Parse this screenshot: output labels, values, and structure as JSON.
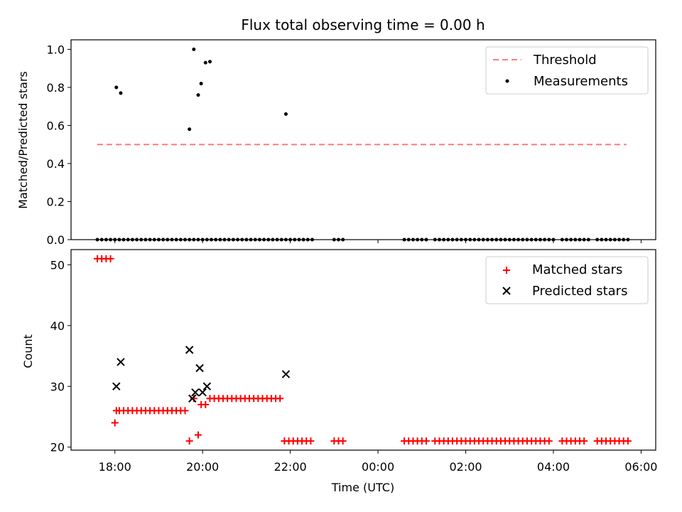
{
  "chart_data": [
    {
      "type": "scatter",
      "title": "Flux total observing time = 0.00 h",
      "xlabel": "",
      "ylabel": "Matched/Predicted stars",
      "xlim": [
        "17:00",
        "06:20"
      ],
      "ylim": [
        0,
        1.05
      ],
      "yticks": [
        "0.0",
        "0.2",
        "0.4",
        "0.6",
        "0.8",
        "1.0"
      ],
      "legend": {
        "placement": "top-right",
        "entries": [
          "Threshold",
          "Measurements"
        ]
      },
      "threshold": {
        "name": "Threshold",
        "value": 0.5,
        "x_start": "17:36",
        "x_end": "05:40",
        "color": "#ff7a7a"
      },
      "series": [
        {
          "name": "Measurements",
          "color": "#000000",
          "marker": "dot",
          "x": [
            "17:36",
            "17:42",
            "17:48",
            "17:54",
            "18:00",
            "18:06",
            "18:12",
            "18:18",
            "18:24",
            "18:30",
            "18:36",
            "18:42",
            "18:48",
            "18:54",
            "19:00",
            "19:06",
            "19:12",
            "19:18",
            "19:24",
            "19:30",
            "19:36",
            "19:42",
            "19:48",
            "19:54",
            "20:00",
            "20:06",
            "20:12",
            "20:18",
            "20:24",
            "20:30",
            "20:36",
            "20:42",
            "20:48",
            "20:54",
            "21:00",
            "21:06",
            "21:12",
            "21:18",
            "21:24",
            "21:30",
            "21:36",
            "21:42",
            "21:48",
            "21:54",
            "22:00",
            "22:06",
            "22:12",
            "22:18",
            "22:24",
            "22:30",
            "23:00",
            "23:06",
            "23:12",
            "00:36",
            "00:42",
            "00:48",
            "00:54",
            "01:00",
            "01:06",
            "01:18",
            "01:24",
            "01:30",
            "01:36",
            "01:42",
            "01:48",
            "01:54",
            "02:00",
            "02:06",
            "02:12",
            "02:18",
            "02:24",
            "02:30",
            "02:36",
            "02:42",
            "02:48",
            "02:54",
            "03:00",
            "03:06",
            "03:12",
            "03:18",
            "03:24",
            "03:30",
            "03:36",
            "03:42",
            "03:48",
            "03:54",
            "04:00",
            "04:12",
            "04:18",
            "04:24",
            "04:30",
            "04:36",
            "04:42",
            "04:48",
            "05:00",
            "05:06",
            "05:12",
            "05:18",
            "05:24",
            "05:30",
            "05:36",
            "05:42",
            "18:02",
            "18:08",
            "19:42",
            "19:48",
            "19:54",
            "19:58",
            "20:04",
            "20:10",
            "21:54"
          ],
          "y": [
            0,
            0,
            0,
            0,
            0,
            0,
            0,
            0,
            0,
            0,
            0,
            0,
            0,
            0,
            0,
            0,
            0,
            0,
            0,
            0,
            0,
            0,
            0,
            0,
            0,
            0,
            0,
            0,
            0,
            0,
            0,
            0,
            0,
            0,
            0,
            0,
            0,
            0,
            0,
            0,
            0,
            0,
            0,
            0,
            0,
            0,
            0,
            0,
            0,
            0,
            0,
            0,
            0,
            0,
            0,
            0,
            0,
            0,
            0,
            0,
            0,
            0,
            0,
            0,
            0,
            0,
            0,
            0,
            0,
            0,
            0,
            0,
            0,
            0,
            0,
            0,
            0,
            0,
            0,
            0,
            0,
            0,
            0,
            0,
            0,
            0,
            0,
            0,
            0,
            0,
            0,
            0,
            0,
            0,
            0,
            0,
            0,
            0,
            0,
            0,
            0,
            0,
            0.8,
            0.77,
            0.58,
            1.0,
            0.76,
            0.82,
            0.93,
            0.935,
            0.66
          ]
        }
      ]
    },
    {
      "type": "scatter",
      "title": "",
      "xlabel": "Time (UTC)",
      "ylabel": "Count",
      "xlim": [
        "17:00",
        "06:20"
      ],
      "ylim": [
        19.5,
        52.5
      ],
      "xticks": [
        "18:00",
        "20:00",
        "22:00",
        "00:00",
        "02:00",
        "04:00",
        "06:00"
      ],
      "yticks": [
        "20",
        "30",
        "40",
        "50"
      ],
      "legend": {
        "placement": "top-right",
        "entries": [
          "Matched stars",
          "Predicted stars"
        ]
      },
      "series": [
        {
          "name": "Matched stars",
          "color": "#ff0000",
          "marker": "plus",
          "x": [
            "17:36",
            "17:42",
            "17:48",
            "17:54",
            "18:00",
            "18:02",
            "18:06",
            "18:12",
            "18:18",
            "18:24",
            "18:30",
            "18:36",
            "18:42",
            "18:48",
            "18:54",
            "19:00",
            "19:06",
            "19:12",
            "19:18",
            "19:24",
            "19:30",
            "19:36",
            "19:42",
            "19:48",
            "19:54",
            "19:58",
            "20:04",
            "20:10",
            "20:16",
            "20:22",
            "20:28",
            "20:34",
            "20:40",
            "20:46",
            "20:52",
            "20:58",
            "21:04",
            "21:10",
            "21:16",
            "21:22",
            "21:28",
            "21:34",
            "21:40",
            "21:46",
            "21:52",
            "21:58",
            "22:04",
            "22:10",
            "22:16",
            "22:22",
            "22:28",
            "23:00",
            "23:06",
            "23:12",
            "00:36",
            "00:42",
            "00:48",
            "00:54",
            "01:00",
            "01:06",
            "01:18",
            "01:24",
            "01:30",
            "01:36",
            "01:42",
            "01:48",
            "01:54",
            "02:00",
            "02:06",
            "02:12",
            "02:18",
            "02:24",
            "02:30",
            "02:36",
            "02:42",
            "02:48",
            "02:54",
            "03:00",
            "03:06",
            "03:12",
            "03:18",
            "03:24",
            "03:30",
            "03:36",
            "03:42",
            "03:48",
            "03:54",
            "04:12",
            "04:18",
            "04:24",
            "04:30",
            "04:36",
            "04:42",
            "05:00",
            "05:06",
            "05:12",
            "05:18",
            "05:24",
            "05:30",
            "05:36",
            "05:42"
          ],
          "y": [
            51,
            51,
            51,
            51,
            24,
            26,
            26,
            26,
            26,
            26,
            26,
            26,
            26,
            26,
            26,
            26,
            26,
            26,
            26,
            26,
            26,
            26,
            21,
            28,
            22,
            27,
            27,
            28,
            28,
            28,
            28,
            28,
            28,
            28,
            28,
            28,
            28,
            28,
            28,
            28,
            28,
            28,
            28,
            28,
            21,
            21,
            21,
            21,
            21,
            21,
            21,
            21,
            21,
            21,
            21,
            21,
            21,
            21,
            21,
            21,
            21,
            21,
            21,
            21,
            21,
            21,
            21,
            21,
            21,
            21,
            21,
            21,
            21,
            21,
            21,
            21,
            21,
            21,
            21,
            21,
            21,
            21,
            21,
            21,
            21,
            21,
            21,
            21,
            21,
            21,
            21,
            21,
            21,
            21,
            21,
            21,
            21,
            21,
            21,
            21,
            21
          ]
        },
        {
          "name": "Predicted stars",
          "color": "#000000",
          "marker": "x",
          "x": [
            "18:02",
            "18:08",
            "19:42",
            "19:46",
            "19:50",
            "19:56",
            "20:00",
            "20:06",
            "21:54"
          ],
          "y": [
            30,
            34,
            36,
            28,
            29,
            33,
            29,
            30,
            32
          ]
        }
      ]
    }
  ]
}
